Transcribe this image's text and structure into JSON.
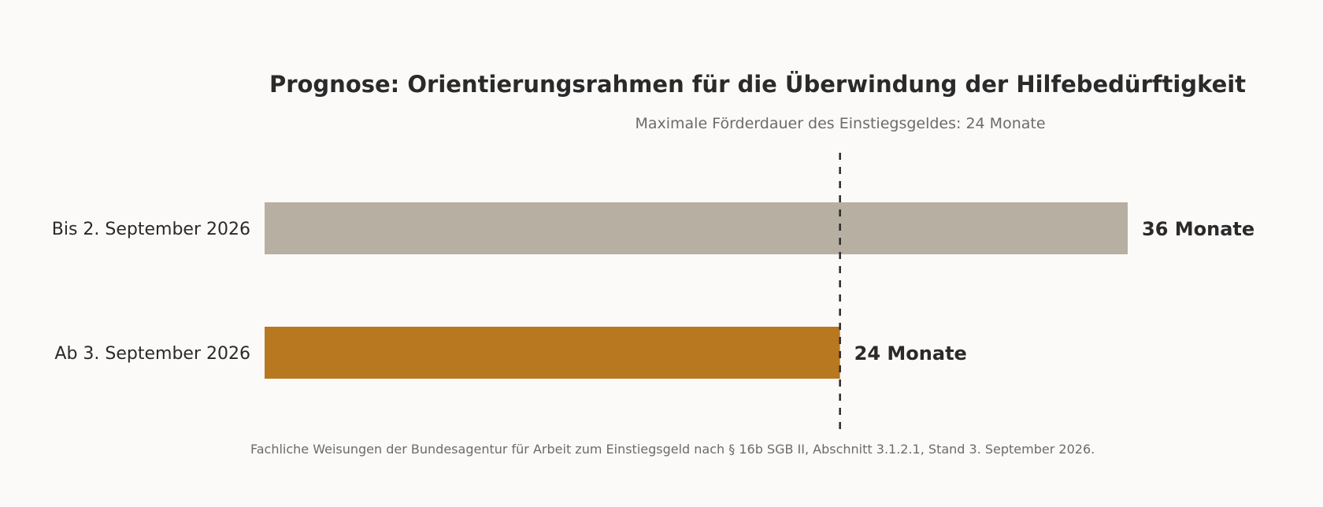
{
  "chart_data": {
    "type": "bar",
    "orientation": "horizontal",
    "title": "Prognose: Orientierungsrahmen für die Überwindung der Hilfebedürftigkeit",
    "categories": [
      "Bis 2. September 2026",
      "Ab 3. September 2026"
    ],
    "values": [
      36,
      24
    ],
    "value_labels": [
      "36 Monate",
      "24 Monate"
    ],
    "bar_colors": [
      "#b7afa2",
      "#b8781f"
    ],
    "reference_line": {
      "value": 24,
      "label": "Maximale Förderdauer des Einstiegsgeldes: 24 Monate",
      "color": "#2a2a2a",
      "style": "dashed"
    },
    "note": "Fachliche Weisungen der Bundesagentur für Arbeit zum Einstiegsgeld nach § 16b SGB II, Abschnitt 3.1.2.1, Stand 3. September 2026.",
    "xlim": [
      0,
      36
    ],
    "grid": false,
    "legend": "none"
  }
}
